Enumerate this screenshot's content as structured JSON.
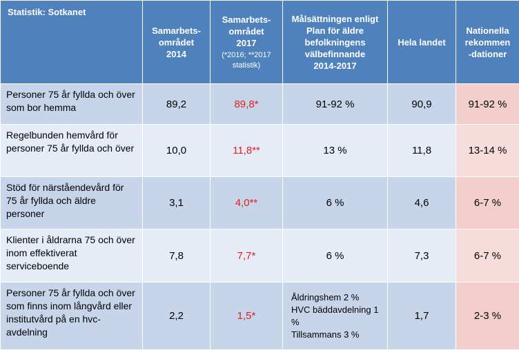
{
  "header": {
    "col1": "Statistik: Sotkanet",
    "col2_line1": "Samarbets-",
    "col2_line2": "området",
    "col2_line3": "2014",
    "col3_line1": "Samarbets-",
    "col3_line2": "området",
    "col3_line3": "2017",
    "col3_note": "(*2016; **2017 statistik)",
    "col4_line1": "Målsättningen enligt",
    "col4_line2": "Plan för äldre",
    "col4_line3": "befolkningens",
    "col4_line4": "välbefinnande",
    "col4_line5": "2014-2017",
    "col5": "Hela landet",
    "col6_line1": "Nationella",
    "col6_line2": "rekommen",
    "col6_line3": "-dationer"
  },
  "rows": [
    {
      "label": "Personer 75 år fyllda och över som bor hemma",
      "y2014": "89,2",
      "y2017": "89,8*",
      "goal": "91-92 %",
      "country": "90,9",
      "rec": "91-92 %"
    },
    {
      "label": "Regelbunden hemvård för personer 75 år fyllda och över",
      "y2014": "10,0",
      "y2017": "11,8**",
      "goal": "13 %",
      "country": "11,8",
      "rec": "13-14 %"
    },
    {
      "label": "Stöd för närståendevård för 75 år fyllda och äldre personer",
      "y2014": "3,1",
      "y2017": "4,0**",
      "goal": "6 %",
      "country": "4,6",
      "rec": "6-7 %"
    },
    {
      "label": "Klienter i åldrarna 75 och över inom effektiverat serviceboende",
      "y2014": "7,8",
      "y2017": "7,7*",
      "goal": "6 %",
      "country": "7,3",
      "rec": "6-7 %"
    },
    {
      "label": "Personer 75 år fyllda och över som finns inom långvård eller institutvård på en hvc-avdelning",
      "y2014": "2,2",
      "y2017": "1,5*",
      "goal_lines": [
        "Åldringshem 2 %",
        "HVC bäddavdelning 1",
        "%",
        "Tillsammans 3 %"
      ],
      "country": "1,7",
      "rec": "2-3 %"
    }
  ]
}
